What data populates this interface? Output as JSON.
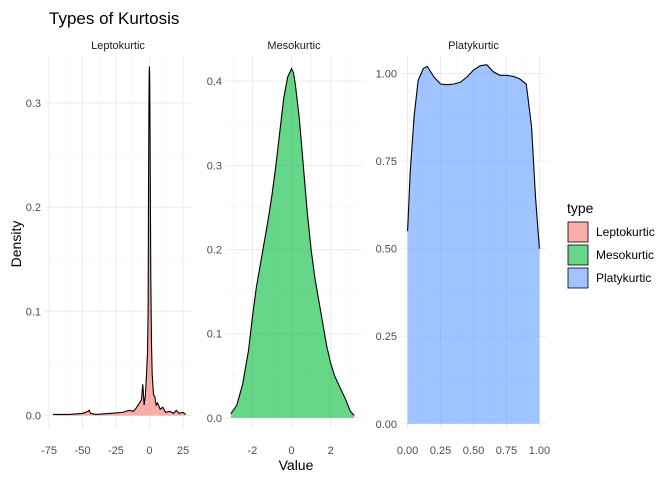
{
  "chart_data": {
    "type": "area",
    "title": "Types of Kurtosis",
    "xlabel": "Value",
    "ylabel": "Density",
    "legend": {
      "title": "type",
      "placement": "right",
      "entries": [
        {
          "name": "Leptokurtic",
          "color": "#F8766D"
        },
        {
          "name": "Mesokurtic",
          "color": "#00BA38"
        },
        {
          "name": "Platykurtic",
          "color": "#619CFF"
        }
      ]
    },
    "grid": true,
    "fill_opacity": 0.6,
    "panels": [
      {
        "name": "Leptokurtic",
        "color": "#F8766D",
        "xlim": [
          -78,
          31
        ],
        "ylim": [
          -0.012,
          0.345
        ],
        "xticks": [
          -75,
          -50,
          -25,
          0,
          25
        ],
        "yticks": [
          0.0,
          0.1,
          0.2,
          0.3
        ],
        "tick_decimals": 1,
        "x": [
          -72,
          -60,
          -50,
          -46,
          -45,
          -44,
          -40,
          -30,
          -20,
          -15,
          -12,
          -10,
          -8,
          -6,
          -5,
          -4,
          -3,
          -2,
          -1.5,
          -1,
          -0.7,
          -0.4,
          -0.2,
          0,
          0.2,
          0.4,
          0.7,
          1,
          1.5,
          2,
          3,
          4,
          5,
          6,
          8,
          10,
          12,
          15,
          18,
          20,
          22,
          25,
          27
        ],
        "y": [
          0.001,
          0.001,
          0.002,
          0.004,
          0.005,
          0.002,
          0.001,
          0.002,
          0.003,
          0.005,
          0.004,
          0.007,
          0.011,
          0.015,
          0.03,
          0.01,
          0.02,
          0.045,
          0.06,
          0.1,
          0.22,
          0.3,
          0.33,
          0.335,
          0.32,
          0.28,
          0.2,
          0.13,
          0.07,
          0.04,
          0.02,
          0.018,
          0.01,
          0.012,
          0.006,
          0.008,
          0.003,
          0.004,
          0.002,
          0.005,
          0.002,
          0.003,
          0.001
        ]
      },
      {
        "name": "Mesokurtic",
        "color": "#00BA38",
        "xlim": [
          -3.35,
          3.6
        ],
        "ylim": [
          -0.012,
          0.43
        ],
        "xticks": [
          -2,
          0,
          2
        ],
        "yticks": [
          0.0,
          0.1,
          0.2,
          0.3,
          0.4
        ],
        "tick_decimals": 1,
        "x": [
          -3.1,
          -2.8,
          -2.5,
          -2.2,
          -2.0,
          -1.8,
          -1.5,
          -1.2,
          -1.0,
          -0.8,
          -0.6,
          -0.4,
          -0.2,
          0.0,
          0.1,
          0.2,
          0.4,
          0.6,
          0.8,
          1.0,
          1.2,
          1.5,
          1.8,
          2.0,
          2.2,
          2.5,
          2.8,
          3.0,
          3.2
        ],
        "y": [
          0.005,
          0.015,
          0.04,
          0.08,
          0.12,
          0.155,
          0.195,
          0.235,
          0.265,
          0.3,
          0.34,
          0.38,
          0.405,
          0.415,
          0.41,
          0.395,
          0.355,
          0.3,
          0.245,
          0.2,
          0.165,
          0.125,
          0.085,
          0.065,
          0.05,
          0.035,
          0.02,
          0.008,
          0.003
        ]
      },
      {
        "name": "Platykurtic",
        "color": "#619CFF",
        "xlim": [
          -0.05,
          1.05
        ],
        "ylim": [
          -0.012,
          1.05
        ],
        "xticks": [
          0.0,
          0.25,
          0.5,
          0.75,
          1.0
        ],
        "yticks": [
          0.0,
          0.25,
          0.5,
          0.75,
          1.0
        ],
        "tick_decimals": 2,
        "x": [
          0.0,
          0.02,
          0.05,
          0.08,
          0.12,
          0.15,
          0.2,
          0.25,
          0.3,
          0.35,
          0.4,
          0.45,
          0.5,
          0.55,
          0.6,
          0.65,
          0.7,
          0.75,
          0.8,
          0.85,
          0.9,
          0.94,
          0.97,
          1.0
        ],
        "y": [
          0.55,
          0.72,
          0.88,
          0.98,
          1.015,
          1.02,
          0.99,
          0.97,
          0.968,
          0.97,
          0.975,
          0.99,
          1.01,
          1.022,
          1.025,
          1.005,
          0.995,
          0.995,
          0.992,
          0.985,
          0.97,
          0.85,
          0.65,
          0.5
        ]
      }
    ]
  }
}
